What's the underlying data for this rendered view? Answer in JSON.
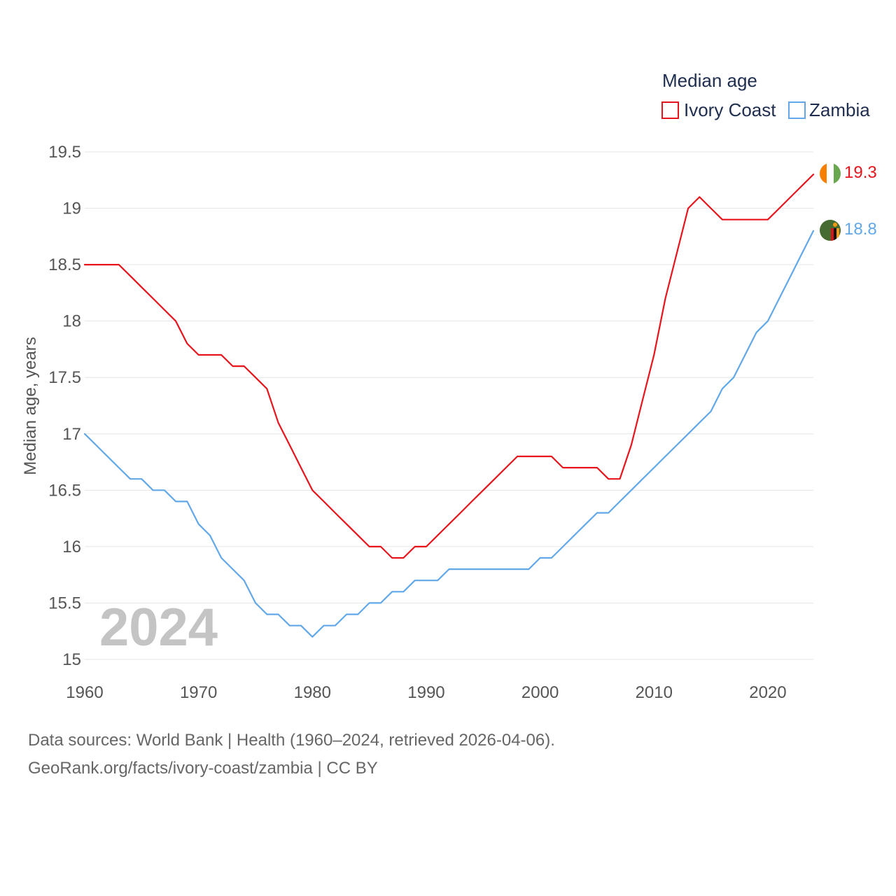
{
  "chart_data": {
    "type": "line",
    "title": "Median age",
    "year_label": "2024",
    "ylabel": "Median age, years",
    "xlabel": "",
    "xlim": [
      1960,
      2024
    ],
    "ylim": [
      15,
      19.5
    ],
    "y_ticks": [
      15,
      15.5,
      16,
      16.5,
      17,
      17.5,
      18,
      18.5,
      19,
      19.5
    ],
    "y_tick_labels": [
      "15",
      "15.5",
      "16",
      "16.5",
      "17",
      "17.5",
      "18",
      "18.5",
      "19",
      "19.5"
    ],
    "x_ticks": [
      1960,
      1970,
      1980,
      1990,
      2000,
      2010,
      2020
    ],
    "x_tick_labels": [
      "1960",
      "1970",
      "1980",
      "1990",
      "2000",
      "2010",
      "2020"
    ],
    "grid": true,
    "legend": "top-right",
    "x": [
      1960,
      1961,
      1962,
      1963,
      1964,
      1965,
      1966,
      1967,
      1968,
      1969,
      1970,
      1971,
      1972,
      1973,
      1974,
      1975,
      1976,
      1977,
      1978,
      1979,
      1980,
      1981,
      1982,
      1983,
      1984,
      1985,
      1986,
      1987,
      1988,
      1989,
      1990,
      1991,
      1992,
      1993,
      1994,
      1995,
      1996,
      1997,
      1998,
      1999,
      2000,
      2001,
      2002,
      2003,
      2004,
      2005,
      2006,
      2007,
      2008,
      2009,
      2010,
      2011,
      2012,
      2013,
      2014,
      2015,
      2016,
      2017,
      2018,
      2019,
      2020,
      2021,
      2022,
      2023,
      2024
    ],
    "series": [
      {
        "name": "Ivory Coast",
        "color": "#e8141c",
        "end_label": "19.3",
        "flag_icon": "ivory-coast-flag-icon",
        "values": [
          18.5,
          18.5,
          18.5,
          18.5,
          18.4,
          18.3,
          18.2,
          18.1,
          18.0,
          17.8,
          17.7,
          17.7,
          17.7,
          17.6,
          17.6,
          17.5,
          17.4,
          17.1,
          16.9,
          16.7,
          16.5,
          16.4,
          16.3,
          16.2,
          16.1,
          16.0,
          16.0,
          15.9,
          15.9,
          16.0,
          16.0,
          16.1,
          16.2,
          16.3,
          16.4,
          16.5,
          16.6,
          16.7,
          16.8,
          16.8,
          16.8,
          16.8,
          16.7,
          16.7,
          16.7,
          16.7,
          16.6,
          16.6,
          16.9,
          17.3,
          17.7,
          18.2,
          18.6,
          19.0,
          19.1,
          19.0,
          18.9,
          18.9,
          18.9,
          18.9,
          18.9,
          19.0,
          19.1,
          19.2,
          19.3
        ]
      },
      {
        "name": "Zambia",
        "color": "#62a8e8",
        "end_label": "18.8",
        "flag_icon": "zambia-flag-icon",
        "values": [
          17.0,
          16.9,
          16.8,
          16.7,
          16.6,
          16.6,
          16.5,
          16.5,
          16.4,
          16.4,
          16.2,
          16.1,
          15.9,
          15.8,
          15.7,
          15.5,
          15.4,
          15.4,
          15.3,
          15.3,
          15.2,
          15.3,
          15.3,
          15.4,
          15.4,
          15.5,
          15.5,
          15.6,
          15.6,
          15.7,
          15.7,
          15.7,
          15.8,
          15.8,
          15.8,
          15.8,
          15.8,
          15.8,
          15.8,
          15.8,
          15.9,
          15.9,
          16.0,
          16.1,
          16.2,
          16.3,
          16.3,
          16.4,
          16.5,
          16.6,
          16.7,
          16.8,
          16.9,
          17.0,
          17.1,
          17.2,
          17.4,
          17.5,
          17.7,
          17.9,
          18.0,
          18.2,
          18.4,
          18.6,
          18.8
        ]
      }
    ]
  },
  "footer": {
    "line1": "Data sources: World Bank | Health (1960–2024, retrieved 2026-04-06).",
    "line2": "GeoRank.org/facts/ivory-coast/zambia | CC BY"
  }
}
